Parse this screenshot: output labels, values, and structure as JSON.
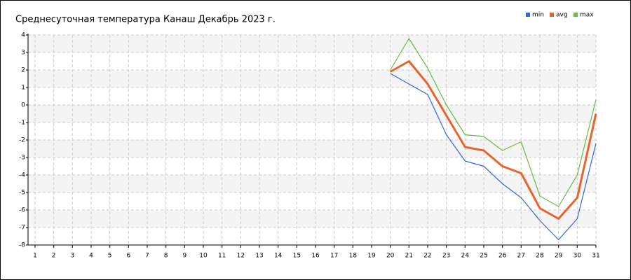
{
  "chart_data": {
    "type": "line",
    "title": "Среднесуточная температура Канаш  Декабрь 2023 г.",
    "x": [
      1,
      2,
      3,
      4,
      5,
      6,
      7,
      8,
      9,
      10,
      11,
      12,
      13,
      14,
      15,
      16,
      17,
      18,
      19,
      20,
      21,
      22,
      23,
      24,
      25,
      26,
      27,
      28,
      29,
      30,
      31
    ],
    "series": [
      {
        "name": "min",
        "color": "#3366dd",
        "values": [
          null,
          null,
          null,
          null,
          null,
          null,
          null,
          null,
          null,
          null,
          null,
          null,
          null,
          null,
          null,
          null,
          null,
          null,
          null,
          1.8,
          1.2,
          0.6,
          -1.7,
          -3.2,
          -3.5,
          -4.5,
          -5.3,
          -6.6,
          -7.7,
          -6.5,
          -2.2
        ]
      },
      {
        "name": "avg",
        "color": "#e8642c",
        "values": [
          null,
          null,
          null,
          null,
          null,
          null,
          null,
          null,
          null,
          null,
          null,
          null,
          null,
          null,
          null,
          null,
          null,
          null,
          null,
          1.9,
          2.5,
          1.2,
          -0.6,
          -2.4,
          -2.6,
          -3.5,
          -3.9,
          -5.9,
          -6.5,
          -5.3,
          -0.5
        ]
      },
      {
        "name": "max",
        "color": "#66bb44",
        "values": [
          null,
          null,
          null,
          null,
          null,
          null,
          null,
          null,
          null,
          null,
          null,
          null,
          null,
          null,
          null,
          null,
          null,
          null,
          null,
          2.0,
          3.8,
          2.1,
          0.0,
          -1.7,
          -1.8,
          -2.6,
          -2.1,
          -5.2,
          -5.8,
          -4.0,
          0.3
        ]
      }
    ],
    "xlim": [
      1,
      31
    ],
    "xticks": [
      1,
      2,
      3,
      4,
      5,
      6,
      7,
      8,
      9,
      10,
      11,
      12,
      13,
      14,
      15,
      16,
      17,
      18,
      19,
      20,
      21,
      22,
      23,
      24,
      25,
      26,
      27,
      28,
      29,
      30,
      31
    ],
    "ylim": [
      -8,
      4
    ],
    "yticks": [
      -8,
      -7,
      -6,
      -5,
      -4,
      -3,
      -2,
      -1,
      0,
      1,
      2,
      3,
      4
    ],
    "grid": true,
    "legend": "top-right"
  }
}
